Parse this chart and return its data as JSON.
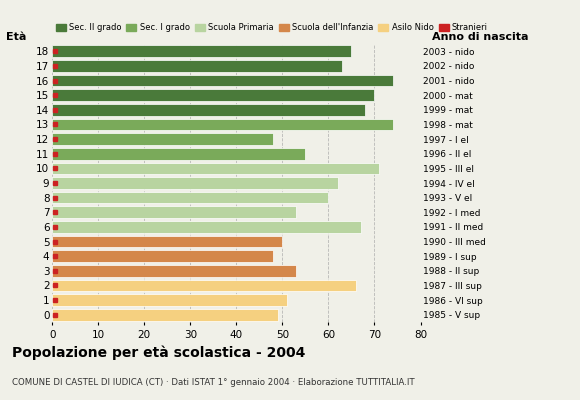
{
  "ages": [
    18,
    17,
    16,
    15,
    14,
    13,
    12,
    11,
    10,
    9,
    8,
    7,
    6,
    5,
    4,
    3,
    2,
    1,
    0
  ],
  "values": [
    65,
    63,
    74,
    70,
    68,
    74,
    48,
    55,
    71,
    62,
    60,
    53,
    67,
    50,
    48,
    53,
    66,
    51,
    49
  ],
  "right_labels": [
    "1985 - V sup",
    "1986 - VI sup",
    "1987 - III sup",
    "1988 - II sup",
    "1989 - I sup",
    "1990 - III med",
    "1991 - II med",
    "1992 - I med",
    "1993 - V el",
    "1994 - IV el",
    "1995 - III el",
    "1996 - II el",
    "1997 - I el",
    "1998 - mat",
    "1999 - mat",
    "2000 - mat",
    "2001 - nido",
    "2002 - nido",
    "2003 - nido"
  ],
  "bar_colors": [
    "#4a7a3a",
    "#4a7a3a",
    "#4a7a3a",
    "#4a7a3a",
    "#4a7a3a",
    "#7aaa5a",
    "#7aaa5a",
    "#7aaa5a",
    "#b8d4a0",
    "#b8d4a0",
    "#b8d4a0",
    "#b8d4a0",
    "#b8d4a0",
    "#d4874a",
    "#d4874a",
    "#d4874a",
    "#f5d080",
    "#f5d080",
    "#f5d080"
  ],
  "stranieri_color": "#cc2222",
  "title": "Popolazione per età scolastica - 2004",
  "subtitle": "COMUNE DI CASTEL DI IUDICA (CT) · Dati ISTAT 1° gennaio 2004 · Elaborazione TUTTITALIA.IT",
  "eta_label": "Età",
  "anno_label": "Anno di nascita",
  "xlim": [
    0,
    80
  ],
  "xticks": [
    0,
    10,
    20,
    30,
    40,
    50,
    60,
    70,
    80
  ],
  "legend_items": [
    {
      "label": "Sec. II grado",
      "color": "#4a7a3a"
    },
    {
      "label": "Sec. I grado",
      "color": "#7aaa5a"
    },
    {
      "label": "Scuola Primaria",
      "color": "#b8d4a0"
    },
    {
      "label": "Scuola dell'Infanzia",
      "color": "#d4874a"
    },
    {
      "label": "Asilo Nido",
      "color": "#f5d080"
    },
    {
      "label": "Stranieri",
      "color": "#cc2222"
    }
  ],
  "bg_color": "#f0f0e8"
}
